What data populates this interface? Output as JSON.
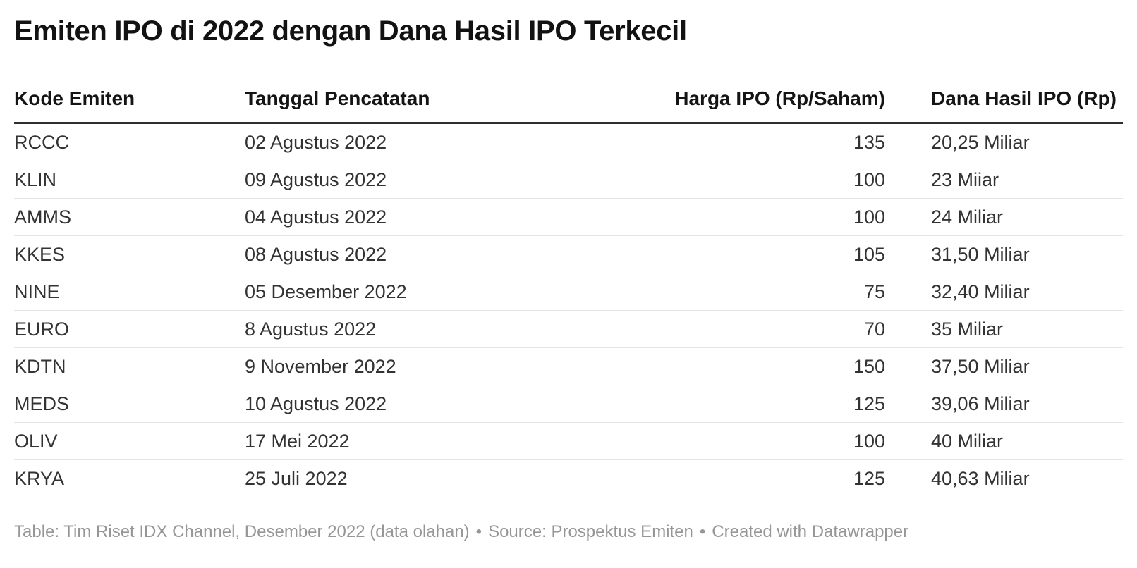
{
  "chart_data": {
    "type": "table",
    "title": "Emiten IPO di 2022 dengan Dana Hasil IPO Terkecil",
    "columns": [
      "Kode Emiten",
      "Tanggal Pencatatan",
      "Harga IPO (Rp/Saham)",
      "Dana Hasil IPO (Rp)"
    ],
    "column_align": [
      "left",
      "left",
      "right",
      "left"
    ],
    "rows": [
      [
        "RCCC",
        "02 Agustus 2022",
        "135",
        "20,25 Miliar"
      ],
      [
        "KLIN",
        "09 Agustus 2022",
        "100",
        "23 Miiar"
      ],
      [
        "AMMS",
        "04 Agustus 2022",
        "100",
        "24 Miliar"
      ],
      [
        "KKES",
        "08 Agustus 2022",
        "105",
        "31,50 Miliar"
      ],
      [
        "NINE",
        "05 Desember 2022",
        "75",
        "32,40 Miliar"
      ],
      [
        "EURO",
        "8 Agustus 2022",
        "70",
        "35 Miliar"
      ],
      [
        "KDTN",
        "9 November 2022",
        "150",
        "37,50 Miliar"
      ],
      [
        "MEDS",
        "10 Agustus 2022",
        "125",
        "39,06 Miliar"
      ],
      [
        "OLIV",
        "17 Mei 2022",
        "100",
        "40 Miliar"
      ],
      [
        "KRYA",
        "25 Juli 2022",
        "125",
        "40,63 Miliar"
      ]
    ],
    "legend": "none",
    "grid": "horizontal-row-dividers"
  },
  "footer": {
    "table_credit": "Table: Tim Riset IDX Channel, Desember 2022 (data olahan)",
    "separator": "•",
    "source": "Source: Prospektus Emiten",
    "created": "Created with Datawrapper"
  },
  "colors": {
    "background": "#ffffff",
    "title_text": "#121212",
    "header_text": "#141414",
    "body_text": "#333333",
    "header_rule": "#2e2e2e",
    "row_divider": "#e4e4e4",
    "footer_text": "#969696"
  }
}
